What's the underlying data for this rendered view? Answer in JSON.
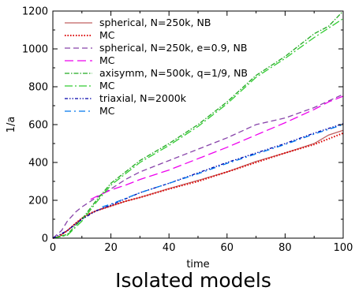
{
  "chart_data": {
    "type": "line",
    "title": "",
    "caption": "Isolated models",
    "xlabel": "time",
    "ylabel": "1/a",
    "xlim": [
      0,
      100
    ],
    "ylim": [
      0,
      1200
    ],
    "xticks": [
      0,
      20,
      40,
      60,
      80,
      100
    ],
    "yticks": [
      0,
      200,
      400,
      600,
      800,
      1000,
      1200
    ],
    "grid": false,
    "legend_position": "top-left",
    "series": [
      {
        "name": "spherical, N=250k, NB",
        "color": "#c06060",
        "style": "solid",
        "x": [
          0,
          2,
          5,
          8,
          10,
          12,
          15,
          20,
          25,
          30,
          40,
          50,
          60,
          70,
          80,
          90,
          95,
          100
        ],
        "y": [
          0,
          8,
          40,
          80,
          105,
          125,
          145,
          170,
          195,
          215,
          262,
          305,
          350,
          405,
          450,
          500,
          545,
          570
        ]
      },
      {
        "name": "MC",
        "color": "#dd0000",
        "style": "dotted",
        "x": [
          0,
          2,
          5,
          8,
          10,
          12,
          15,
          20,
          25,
          30,
          40,
          50,
          60,
          70,
          80,
          90,
          95,
          100
        ],
        "y": [
          0,
          8,
          40,
          80,
          105,
          125,
          145,
          170,
          195,
          215,
          260,
          300,
          350,
          400,
          450,
          495,
          525,
          555
        ]
      },
      {
        "name": "spherical, N=250k, e=0.9, NB",
        "color": "#8844aa",
        "style": "dashed",
        "x": [
          0,
          3,
          5,
          8,
          10,
          15,
          20,
          25,
          30,
          40,
          50,
          60,
          70,
          80,
          90,
          100
        ],
        "y": [
          0,
          40,
          90,
          140,
          165,
          215,
          260,
          310,
          350,
          410,
          470,
          530,
          600,
          635,
          690,
          760
        ]
      },
      {
        "name": "MC",
        "color": "#ee00ee",
        "style": "longdash",
        "x": [
          13,
          15,
          20,
          25,
          30,
          40,
          50,
          60,
          70,
          80,
          90,
          95,
          100
        ],
        "y": [
          205,
          220,
          255,
          280,
          310,
          360,
          420,
          480,
          545,
          610,
          680,
          720,
          750
        ]
      },
      {
        "name": "axisymm, N=500k, q=1/9, NB",
        "color": "#22aa22",
        "style": "dashdot",
        "x": [
          0,
          5,
          8,
          10,
          15,
          20,
          25,
          30,
          40,
          50,
          60,
          70,
          80,
          90,
          95,
          100
        ],
        "y": [
          0,
          20,
          70,
          100,
          200,
          290,
          350,
          410,
          500,
          600,
          720,
          860,
          960,
          1080,
          1120,
          1200
        ]
      },
      {
        "name": "MC",
        "color": "#33cc33",
        "style": "dashdotlong",
        "x": [
          0,
          5,
          8,
          10,
          15,
          20,
          25,
          30,
          40,
          50,
          60,
          70,
          80,
          90,
          95,
          100
        ],
        "y": [
          0,
          15,
          60,
          90,
          190,
          280,
          340,
          400,
          490,
          590,
          710,
          850,
          950,
          1060,
          1110,
          1160
        ]
      },
      {
        "name": "triaxial, N=2000k",
        "color": "#0000aa",
        "style": "dashdotdot",
        "x": [
          0,
          5,
          10,
          15,
          20,
          30,
          40,
          50,
          60,
          70,
          80,
          90,
          100
        ],
        "y": [
          0,
          40,
          100,
          145,
          175,
          240,
          290,
          345,
          400,
          450,
          500,
          555,
          605
        ]
      },
      {
        "name": "MC",
        "color": "#0077ee",
        "style": "dashdotwide",
        "x": [
          17,
          20,
          30,
          40,
          50,
          60,
          70,
          80,
          90,
          100
        ],
        "y": [
          165,
          180,
          240,
          290,
          340,
          395,
          445,
          495,
          550,
          600
        ]
      }
    ]
  }
}
